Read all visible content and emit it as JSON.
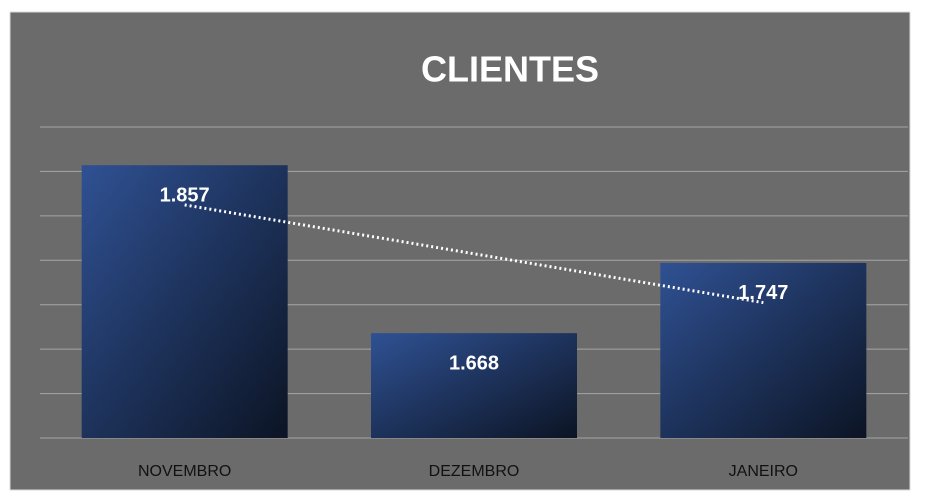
{
  "chart_data": {
    "type": "bar",
    "title": "CLIENTES",
    "categories": [
      "NOVEMBRO",
      "DEZEMBRO",
      "JANEIRO"
    ],
    "values": [
      1857,
      1668,
      1747
    ],
    "value_labels": [
      "1.857",
      "1.668",
      "1.747"
    ],
    "color": "#2f5193",
    "ylim": [
      1550,
      1900
    ],
    "yticks": [
      1550,
      1600,
      1650,
      1700,
      1750,
      1800,
      1850,
      1900
    ],
    "grid": true,
    "trendline": "linear"
  }
}
